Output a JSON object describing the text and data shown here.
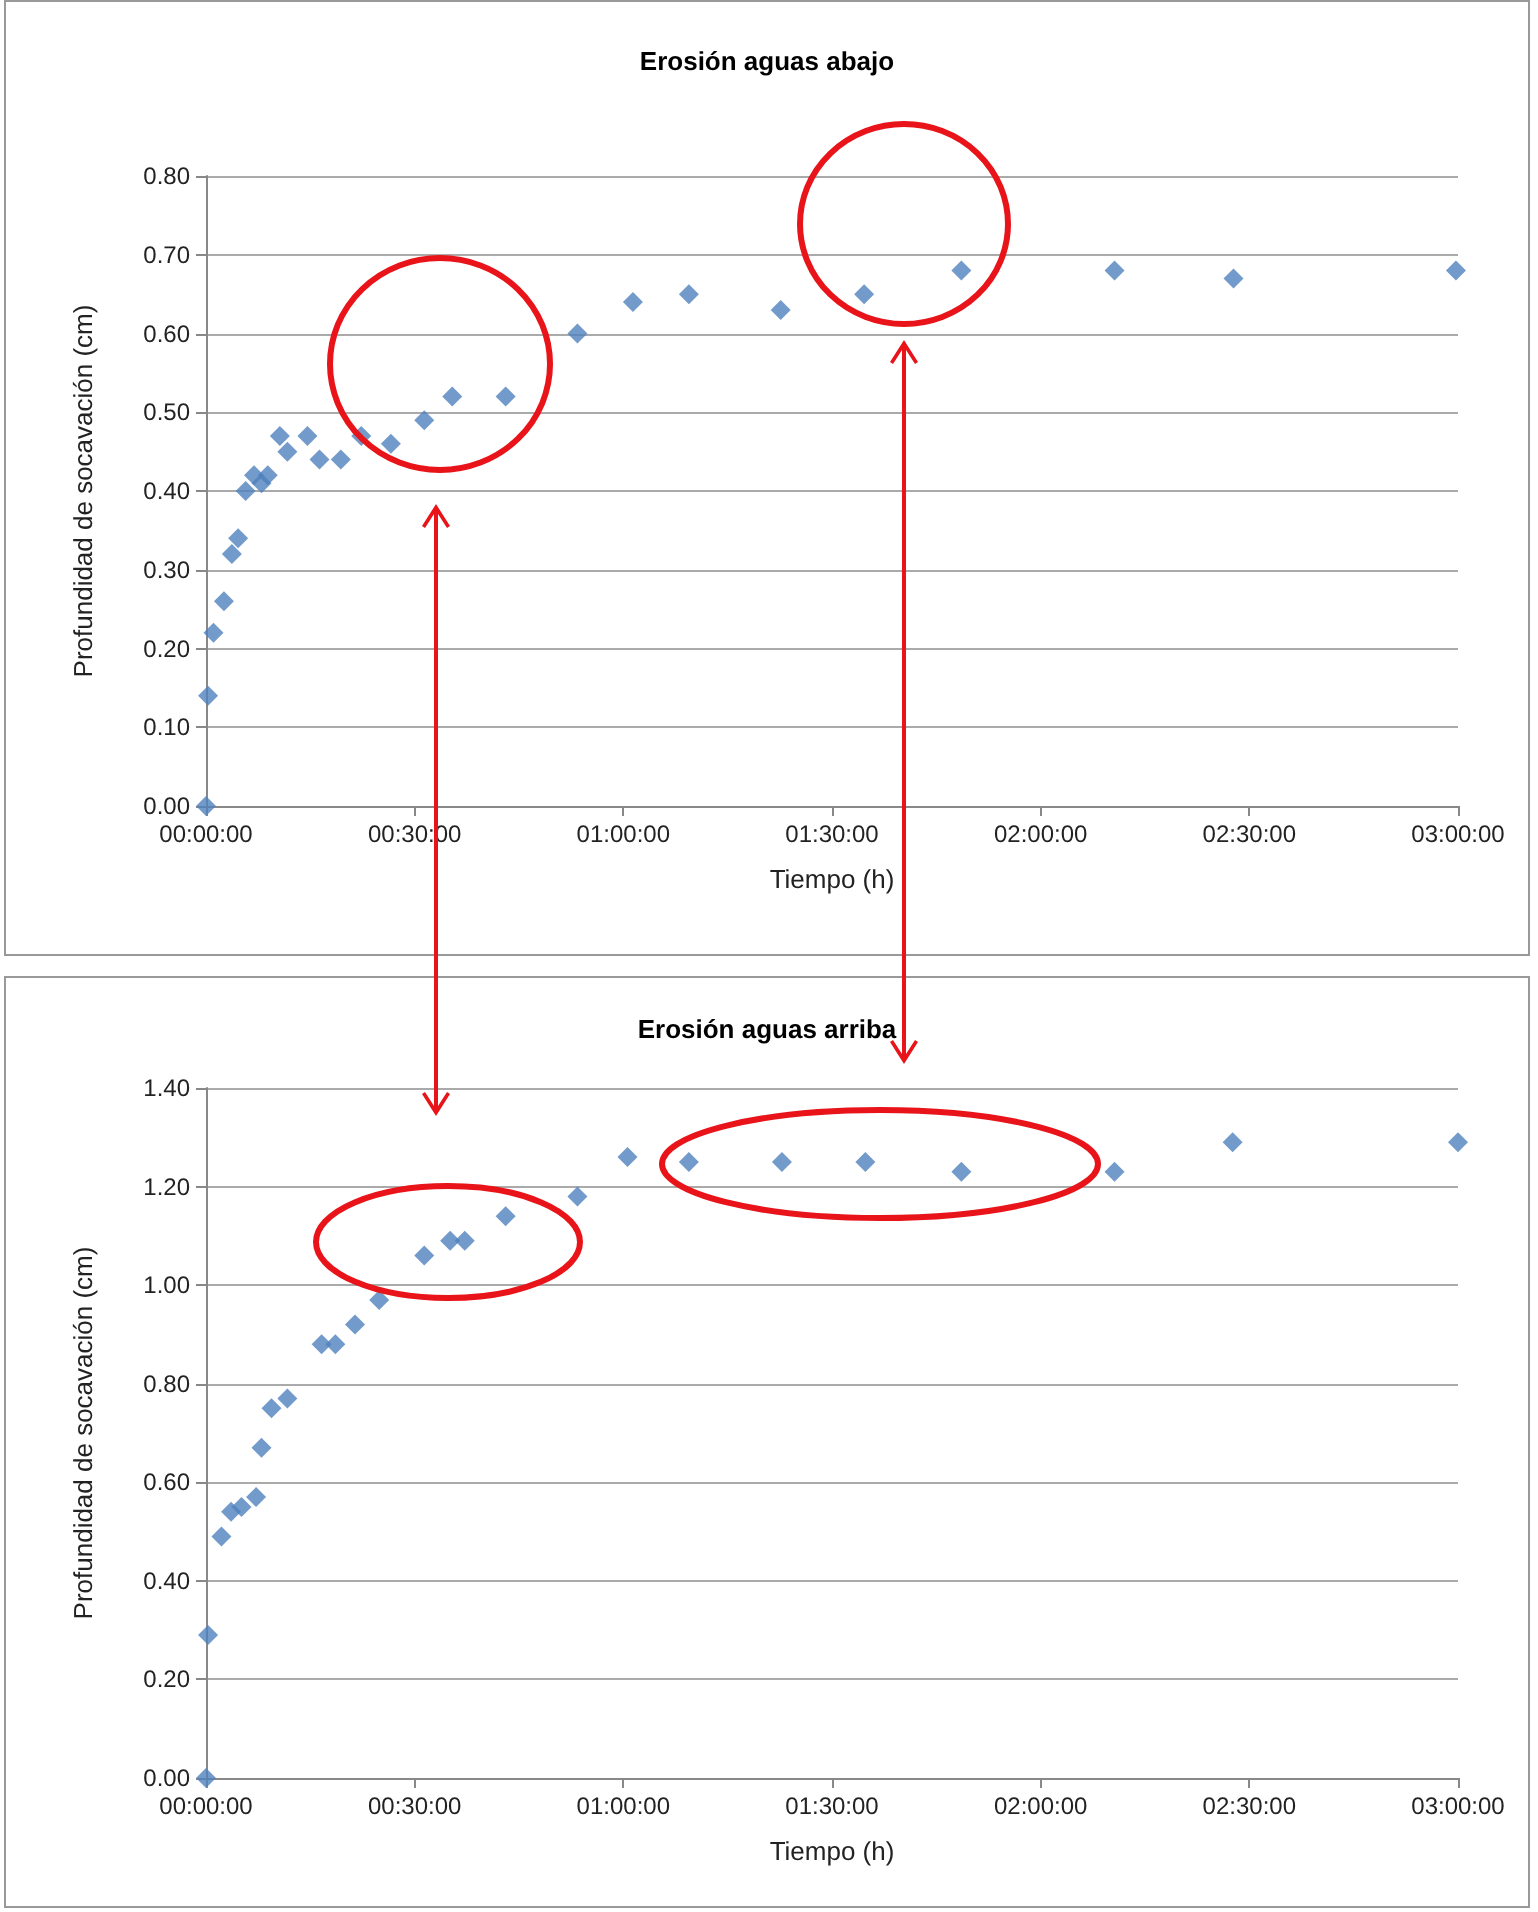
{
  "chart_data": [
    {
      "type": "scatter",
      "title": "Erosión aguas abajo",
      "xlabel": "Tiempo (h)",
      "ylabel": "Profundidad de socavación (cm)",
      "marker": "diamond",
      "grid": "y",
      "x": [
        0,
        0.005,
        0.018,
        0.043,
        0.062,
        0.077,
        0.095,
        0.115,
        0.133,
        0.148,
        0.177,
        0.195,
        0.243,
        0.272,
        0.323,
        0.372,
        0.443,
        0.523,
        0.59,
        0.718,
        0.89,
        1.023,
        1.157,
        1.377,
        1.577,
        1.81,
        2.177,
        2.462,
        2.995
      ],
      "series": [
        {
          "color": "#4f81bd",
          "values": [
            0.0,
            0.14,
            0.22,
            0.26,
            0.32,
            0.34,
            0.4,
            0.42,
            0.41,
            0.42,
            0.47,
            0.45,
            0.47,
            0.44,
            0.44,
            0.47,
            0.46,
            0.49,
            0.52,
            0.52,
            0.6,
            0.64,
            0.65,
            0.63,
            0.65,
            0.68,
            0.68,
            0.67,
            0.68
          ]
        }
      ],
      "xlim": [
        0,
        3
      ],
      "xticks": [
        {
          "value": 0,
          "label": "00:00:00"
        },
        {
          "value": 0.5,
          "label": "00:30:00"
        },
        {
          "value": 1,
          "label": "01:00:00"
        },
        {
          "value": 1.5,
          "label": "01:30:00"
        },
        {
          "value": 2,
          "label": "02:00:00"
        },
        {
          "value": 2.5,
          "label": "02:30:00"
        },
        {
          "value": 3,
          "label": "03:00:00"
        }
      ],
      "ylim": [
        0,
        0.8
      ],
      "yticks": [
        {
          "value": 0,
          "label": "0.00"
        },
        {
          "value": 0.1,
          "label": "0.10"
        },
        {
          "value": 0.2,
          "label": "0.20"
        },
        {
          "value": 0.3,
          "label": "0.30"
        },
        {
          "value": 0.4,
          "label": "0.40"
        },
        {
          "value": 0.5,
          "label": "0.50"
        },
        {
          "value": 0.6,
          "label": "0.60"
        },
        {
          "value": 0.7,
          "label": "0.70"
        },
        {
          "value": 0.8,
          "label": "0.80"
        }
      ]
    },
    {
      "type": "scatter",
      "title": "Erosión aguas arriba",
      "xlabel": "Tiempo (h)",
      "ylabel": "Profundidad de socavación (cm)",
      "marker": "diamond",
      "grid": "y",
      "x": [
        0,
        0.005,
        0.037,
        0.06,
        0.085,
        0.12,
        0.133,
        0.157,
        0.195,
        0.277,
        0.31,
        0.357,
        0.415,
        0.523,
        0.585,
        0.62,
        0.718,
        0.89,
        1.01,
        1.157,
        1.38,
        1.58,
        1.81,
        2.177,
        2.46,
        3.0
      ],
      "series": [
        {
          "color": "#4f81bd",
          "values": [
            0.0,
            0.29,
            0.49,
            0.54,
            0.55,
            0.57,
            0.67,
            0.75,
            0.77,
            0.88,
            0.88,
            0.92,
            0.97,
            1.06,
            1.09,
            1.09,
            1.14,
            1.18,
            1.26,
            1.25,
            1.25,
            1.25,
            1.23,
            1.23,
            1.29,
            1.29
          ]
        }
      ],
      "xlim": [
        0,
        3
      ],
      "xticks": [
        {
          "value": 0,
          "label": "00:00:00"
        },
        {
          "value": 0.5,
          "label": "00:30:00"
        },
        {
          "value": 1,
          "label": "01:00:00"
        },
        {
          "value": 1.5,
          "label": "01:30:00"
        },
        {
          "value": 2,
          "label": "02:00:00"
        },
        {
          "value": 2.5,
          "label": "02:30:00"
        },
        {
          "value": 3,
          "label": "03:00:00"
        }
      ],
      "ylim": [
        0,
        1.4
      ],
      "yticks": [
        {
          "value": 0,
          "label": "0.00"
        },
        {
          "value": 0.2,
          "label": "0.20"
        },
        {
          "value": 0.4,
          "label": "0.40"
        },
        {
          "value": 0.6,
          "label": "0.60"
        },
        {
          "value": 0.8,
          "label": "0.80"
        },
        {
          "value": 1,
          "label": "1.00"
        },
        {
          "value": 1.2,
          "label": "1.20"
        },
        {
          "value": 1.4,
          "label": "1.40"
        }
      ]
    }
  ]
}
